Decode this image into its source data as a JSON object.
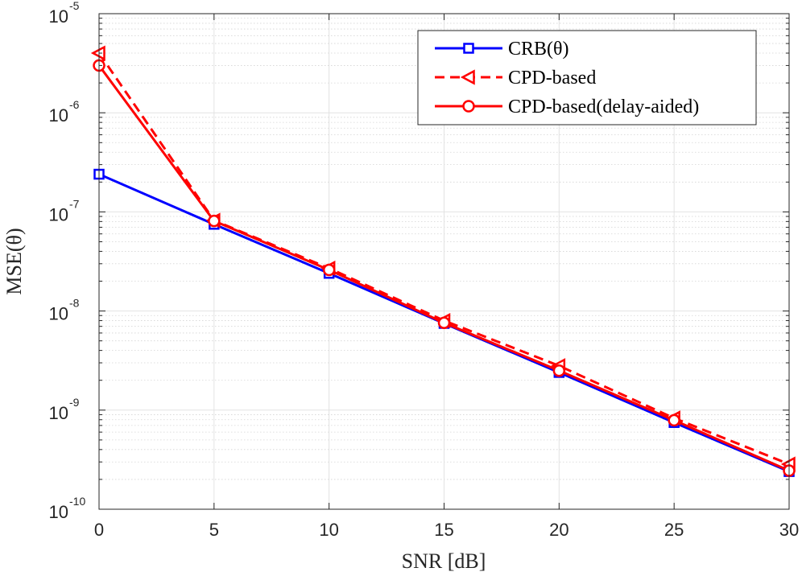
{
  "chart_data": {
    "type": "line",
    "yscale": "log",
    "xlabel": "SNR [dB]",
    "ylabel": "MSE(θ)",
    "xlim": [
      0,
      30
    ],
    "ylim_exp": [
      -10,
      -5
    ],
    "ylim": [
      1e-10,
      1e-05
    ],
    "x_ticks": [
      0,
      5,
      10,
      15,
      20,
      25,
      30
    ],
    "y_tick_base": "10",
    "y_ticks": [
      {
        "value": 1e-10,
        "exp": "-10"
      },
      {
        "value": 1e-09,
        "exp": "-9"
      },
      {
        "value": 1e-08,
        "exp": "-8"
      },
      {
        "value": 1e-07,
        "exp": "-7"
      },
      {
        "value": 1e-06,
        "exp": "-6"
      },
      {
        "value": 1e-05,
        "exp": "-5"
      }
    ],
    "grid": true,
    "legend_position": "top-right",
    "x": [
      0,
      5,
      10,
      15,
      20,
      25,
      30
    ],
    "series": [
      {
        "name": "CRB(θ)",
        "color": "#0000ff",
        "dashed": false,
        "marker": "square",
        "values": [
          2.4e-07,
          7.5e-08,
          2.4e-08,
          7.5e-09,
          2.4e-09,
          7.5e-10,
          2.4e-10
        ]
      },
      {
        "name": "CPD-based",
        "color": "#ff0000",
        "dashed": true,
        "marker": "triangle-left",
        "values": [
          4e-06,
          8.2e-08,
          2.7e-08,
          8e-09,
          2.8e-09,
          8.3e-10,
          2.85e-10
        ]
      },
      {
        "name": "CPD-based(delay-aided)",
        "color": "#ff0000",
        "dashed": false,
        "marker": "circle",
        "values": [
          3e-06,
          8.1e-08,
          2.6e-08,
          7.6e-09,
          2.5e-09,
          7.9e-10,
          2.45e-10
        ]
      }
    ]
  }
}
